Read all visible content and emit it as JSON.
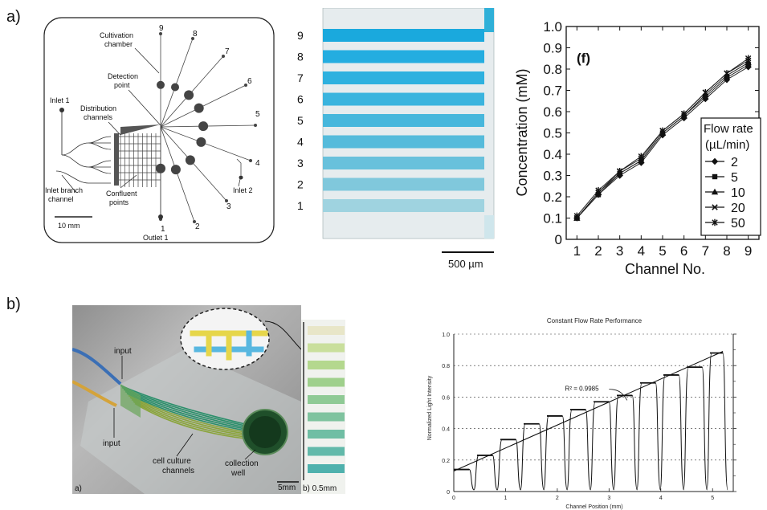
{
  "panel_a": {
    "label": "a)",
    "schematic": {
      "chamber_numbers": [
        "9",
        "8",
        "7",
        "6",
        "5",
        "4",
        "3",
        "2",
        "1"
      ],
      "labels": {
        "cultivation": [
          "Cultivation",
          "chamber"
        ],
        "detection": [
          "Detection",
          "point"
        ],
        "inlet1": "Inlet 1",
        "distribution": [
          "Distribution",
          "channels"
        ],
        "inlet2": "Inlet 2",
        "inlet_branch": [
          "Inlet branch",
          "channel"
        ],
        "confluent": [
          "Confluent",
          "points"
        ],
        "outlet1": "Outlet 1",
        "scale": "10 mm"
      }
    },
    "micrograph": {
      "channel_numbers": [
        "9",
        "8",
        "7",
        "6",
        "5",
        "4",
        "3",
        "2",
        "1"
      ],
      "scale": "500 µm"
    },
    "plot": {
      "panel_tag": "(f)",
      "legend_title": [
        "Flow rate",
        "(µL/min)"
      ]
    }
  },
  "panel_b": {
    "label": "b)",
    "photo": {
      "input_top": "input",
      "input_bottom": "input",
      "cell_culture": [
        "cell culture",
        "channels"
      ],
      "collection": [
        "collection",
        "well"
      ],
      "scale": "5mm",
      "sub_a": "a)",
      "sub_b": "b) 0.5mm"
    },
    "strip_colors": [
      "#e8e6c8",
      "#c9df9c",
      "#b4d88e",
      "#9fd08c",
      "#8fca95",
      "#7fc39f",
      "#70bea4",
      "#62b9aa",
      "#4fb1ad"
    ]
  },
  "chart_data": [
    {
      "type": "line",
      "title": "",
      "xlabel": "Channel No.",
      "ylabel": "Concentration (mM)",
      "xlim": [
        0.5,
        9.5
      ],
      "ylim": [
        0,
        1.0
      ],
      "x_ticks": [
        "1",
        "2",
        "3",
        "4",
        "5",
        "6",
        "7",
        "8",
        "9"
      ],
      "y_ticks": [
        "0",
        "0.1",
        "0.2",
        "0.3",
        "0.4",
        "0.5",
        "0.6",
        "0.7",
        "0.8",
        "0.9",
        "1.0"
      ],
      "grid": false,
      "legend_position": "right",
      "x": [
        1,
        2,
        3,
        4,
        5,
        6,
        7,
        8,
        9
      ],
      "series": [
        {
          "name": "2",
          "values": [
            0.1,
            0.21,
            0.3,
            0.36,
            0.49,
            0.57,
            0.66,
            0.75,
            0.81
          ]
        },
        {
          "name": "5",
          "values": [
            0.1,
            0.21,
            0.31,
            0.37,
            0.5,
            0.58,
            0.67,
            0.76,
            0.82
          ]
        },
        {
          "name": "10",
          "values": [
            0.1,
            0.22,
            0.31,
            0.37,
            0.5,
            0.58,
            0.68,
            0.77,
            0.83
          ]
        },
        {
          "name": "20",
          "values": [
            0.1,
            0.22,
            0.32,
            0.38,
            0.51,
            0.59,
            0.69,
            0.78,
            0.84
          ]
        },
        {
          "name": "50",
          "values": [
            0.11,
            0.23,
            0.32,
            0.39,
            0.51,
            0.59,
            0.69,
            0.78,
            0.85
          ]
        }
      ]
    },
    {
      "type": "line",
      "title": "Constant Flow Rate Performance",
      "xlabel": "Channel Position (mm)",
      "ylabel": "Normalized Light Intensity",
      "xlim": [
        0,
        5.4
      ],
      "ylim": [
        0,
        1.0
      ],
      "x_ticks": [
        "0",
        "1",
        "2",
        "3",
        "4",
        "5"
      ],
      "y_ticks": [
        "0",
        "0.2",
        "0.4",
        "0.6",
        "0.8",
        "1.0"
      ],
      "grid": true,
      "annotation": "R² = 0.9985",
      "fit_line": {
        "x": [
          0,
          5.2
        ],
        "y": [
          0.13,
          0.89
        ]
      },
      "steps": [
        {
          "x0": 0.0,
          "x1": 0.3,
          "y": 0.14
        },
        {
          "x0": 0.45,
          "x1": 0.75,
          "y": 0.23
        },
        {
          "x0": 0.9,
          "x1": 1.2,
          "y": 0.33
        },
        {
          "x0": 1.35,
          "x1": 1.65,
          "y": 0.43
        },
        {
          "x0": 1.8,
          "x1": 2.1,
          "y": 0.48
        },
        {
          "x0": 2.25,
          "x1": 2.55,
          "y": 0.52
        },
        {
          "x0": 2.7,
          "x1": 3.0,
          "y": 0.57
        },
        {
          "x0": 3.15,
          "x1": 3.45,
          "y": 0.61
        },
        {
          "x0": 3.6,
          "x1": 3.9,
          "y": 0.69
        },
        {
          "x0": 4.05,
          "x1": 4.35,
          "y": 0.74
        },
        {
          "x0": 4.5,
          "x1": 4.8,
          "y": 0.79
        },
        {
          "x0": 4.95,
          "x1": 5.2,
          "y": 0.88
        }
      ]
    }
  ]
}
